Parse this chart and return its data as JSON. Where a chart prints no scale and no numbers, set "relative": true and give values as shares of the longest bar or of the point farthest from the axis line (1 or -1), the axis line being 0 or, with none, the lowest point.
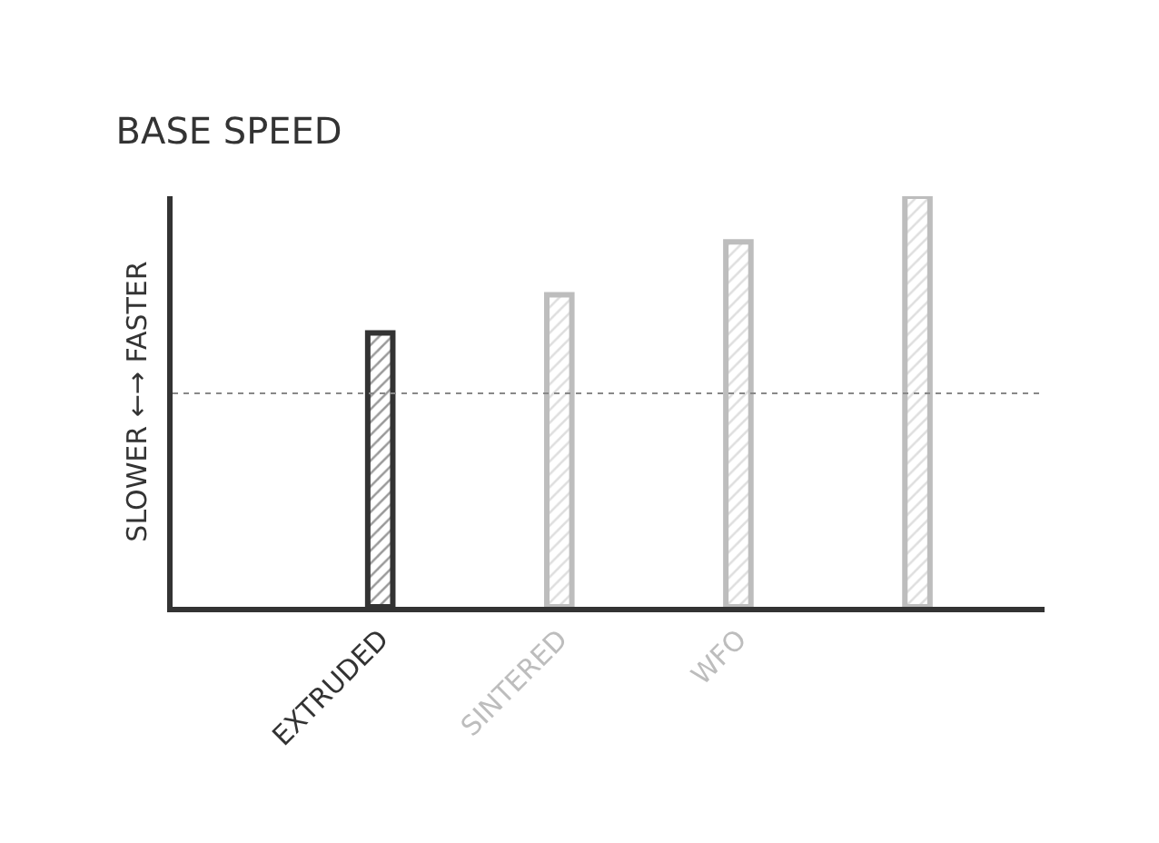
{
  "chart_data": {
    "type": "bar",
    "title": "BASE SPEED",
    "ylabel": "SLOWER ←→ FASTER",
    "relative": true,
    "categories": [
      "EXTRUDED",
      "SINTERED",
      "WFO",
      null
    ],
    "values": [
      0.667,
      0.76,
      0.889,
      1.0
    ],
    "colors": [
      "#333333",
      "#bdbdbd",
      "#bdbdbd",
      "#bdbdbd"
    ],
    "ref_lines": [
      {
        "axis": "y",
        "value": 0.52,
        "color": "#888888",
        "line_style": "dotted"
      }
    ]
  }
}
